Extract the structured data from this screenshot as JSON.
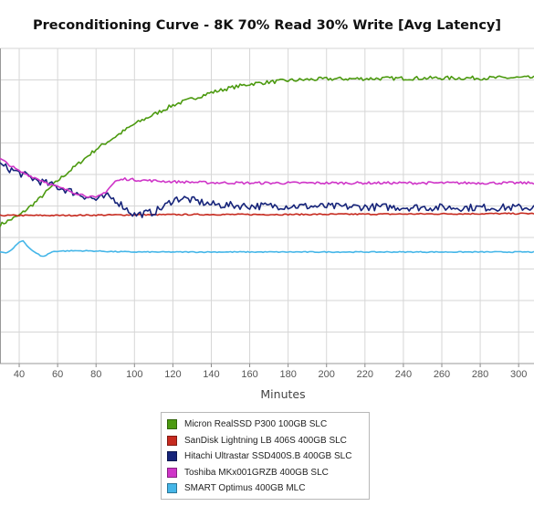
{
  "chart_data": {
    "type": "line",
    "title": "Preconditioning Curve - 8K 70% Read 30% Write [Avg Latency]",
    "xlabel": "Minutes",
    "ylabel": "",
    "x_ticks": [
      "40",
      "60",
      "80",
      "100",
      "120",
      "140",
      "160",
      "180",
      "200",
      "220",
      "240",
      "260",
      "280",
      "300"
    ],
    "xlim": [
      30,
      308
    ],
    "ylim": [
      0,
      1
    ],
    "y_axis_labels_visible": false,
    "grid": true,
    "legend_position": "bottom",
    "series": [
      {
        "name": "Micron RealSSD P300 100GB SLC",
        "color": "#4c9a10",
        "points": [
          [
            30,
            0.44
          ],
          [
            40,
            0.47
          ],
          [
            50,
            0.52
          ],
          [
            60,
            0.58
          ],
          [
            70,
            0.63
          ],
          [
            80,
            0.68
          ],
          [
            90,
            0.72
          ],
          [
            100,
            0.76
          ],
          [
            110,
            0.79
          ],
          [
            120,
            0.82
          ],
          [
            130,
            0.84
          ],
          [
            140,
            0.86
          ],
          [
            150,
            0.875
          ],
          [
            160,
            0.887
          ],
          [
            170,
            0.893
          ],
          [
            180,
            0.898
          ],
          [
            190,
            0.901
          ],
          [
            200,
            0.903
          ],
          [
            220,
            0.904
          ],
          [
            240,
            0.905
          ],
          [
            260,
            0.906
          ],
          [
            280,
            0.906
          ],
          [
            300,
            0.907
          ],
          [
            308,
            0.907
          ]
        ],
        "noise": 0.006
      },
      {
        "name": "SanDisk Lightning LB 406S 400GB SLC",
        "color": "#c62a1f",
        "points": [
          [
            30,
            0.47
          ],
          [
            60,
            0.47
          ],
          [
            100,
            0.472
          ],
          [
            140,
            0.473
          ],
          [
            180,
            0.473
          ],
          [
            220,
            0.474
          ],
          [
            260,
            0.475
          ],
          [
            308,
            0.476
          ]
        ],
        "noise": 0.002
      },
      {
        "name": "Hitachi Ultrastar SSD400S.B 400GB SLC",
        "color": "#16247a",
        "points": [
          [
            30,
            0.63
          ],
          [
            34,
            0.62
          ],
          [
            38,
            0.61
          ],
          [
            42,
            0.6
          ],
          [
            50,
            0.58
          ],
          [
            60,
            0.56
          ],
          [
            70,
            0.54
          ],
          [
            80,
            0.52
          ],
          [
            86,
            0.53
          ],
          [
            90,
            0.52
          ],
          [
            96,
            0.49
          ],
          [
            100,
            0.472
          ],
          [
            110,
            0.48
          ],
          [
            116,
            0.5
          ],
          [
            120,
            0.52
          ],
          [
            125,
            0.525
          ],
          [
            130,
            0.518
          ],
          [
            140,
            0.505
          ],
          [
            150,
            0.502
          ],
          [
            160,
            0.5
          ],
          [
            180,
            0.5
          ],
          [
            200,
            0.498
          ],
          [
            220,
            0.497
          ],
          [
            240,
            0.496
          ],
          [
            260,
            0.495
          ],
          [
            280,
            0.495
          ],
          [
            300,
            0.495
          ],
          [
            308,
            0.495
          ]
        ],
        "noise": 0.012
      },
      {
        "name": "Toshiba MKx001GRZB 400GB SLC",
        "color": "#cf35c8",
        "points": [
          [
            30,
            0.65
          ],
          [
            35,
            0.63
          ],
          [
            40,
            0.61
          ],
          [
            50,
            0.585
          ],
          [
            60,
            0.56
          ],
          [
            70,
            0.54
          ],
          [
            80,
            0.525
          ],
          [
            85,
            0.545
          ],
          [
            90,
            0.578
          ],
          [
            95,
            0.586
          ],
          [
            100,
            0.583
          ],
          [
            120,
            0.577
          ],
          [
            140,
            0.574
          ],
          [
            160,
            0.573
          ],
          [
            200,
            0.573
          ],
          [
            240,
            0.573
          ],
          [
            280,
            0.573
          ],
          [
            308,
            0.573
          ]
        ],
        "noise": 0.004
      },
      {
        "name": "SMART Optimus 400GB MLC",
        "color": "#45b6e8",
        "points": [
          [
            30,
            0.355
          ],
          [
            33,
            0.35
          ],
          [
            36,
            0.36
          ],
          [
            40,
            0.385
          ],
          [
            42,
            0.39
          ],
          [
            45,
            0.368
          ],
          [
            48,
            0.353
          ],
          [
            51,
            0.343
          ],
          [
            53,
            0.34
          ],
          [
            55,
            0.348
          ],
          [
            58,
            0.356
          ],
          [
            62,
            0.357
          ],
          [
            70,
            0.358
          ],
          [
            80,
            0.357
          ],
          [
            90,
            0.355
          ],
          [
            100,
            0.354
          ],
          [
            120,
            0.354
          ],
          [
            160,
            0.354
          ],
          [
            200,
            0.354
          ],
          [
            240,
            0.354
          ],
          [
            280,
            0.354
          ],
          [
            308,
            0.354
          ]
        ],
        "noise": 0.0015
      }
    ]
  }
}
